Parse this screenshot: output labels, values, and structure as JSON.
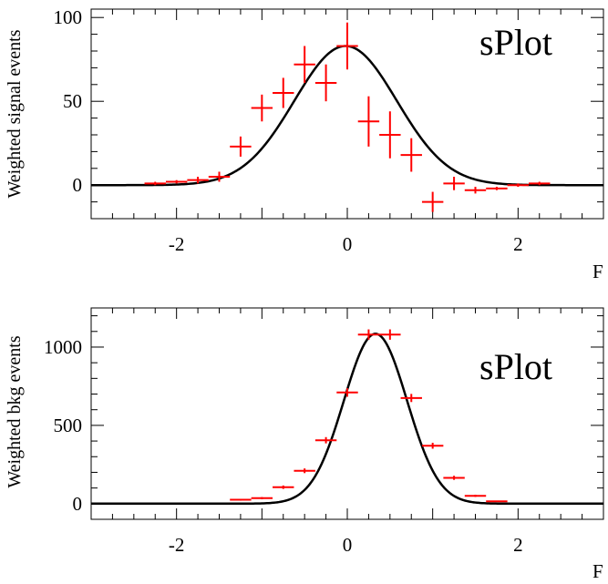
{
  "chart_data": [
    {
      "type": "scatter",
      "title": "sPlot",
      "xlabel": "F",
      "ylabel": "Weighted signal events",
      "xlim": [
        -3,
        3
      ],
      "ylim": [
        -20,
        105
      ],
      "xticks": [
        -2,
        0,
        2
      ],
      "yticks": [
        0,
        50,
        100
      ],
      "tick_labels": {
        "x": [
          "-2",
          "0",
          "2"
        ],
        "y": [
          "0",
          "50",
          "100"
        ]
      },
      "grid": false,
      "legend": "none",
      "series": [
        {
          "kind": "points-with-errors",
          "color": "#ff0000",
          "x": [
            -2.25,
            -2.0,
            -1.75,
            -1.5,
            -1.25,
            -1.0,
            -0.75,
            -0.5,
            -0.25,
            0.0,
            0.25,
            0.5,
            0.75,
            1.0,
            1.25,
            1.5,
            1.75,
            2.0,
            2.25
          ],
          "xerr": 0.125,
          "y": [
            1,
            2,
            3,
            5,
            23,
            46,
            55,
            72,
            61,
            83,
            38,
            30,
            18,
            -10,
            1,
            -3,
            -2,
            0,
            1
          ],
          "yerr": [
            1,
            1,
            2,
            3,
            6,
            8,
            9,
            11,
            11,
            14,
            15,
            14,
            10,
            6,
            4,
            2,
            1,
            1,
            1
          ]
        },
        {
          "kind": "curve",
          "color": "#000000",
          "function": "gaussian",
          "amplitude": 83,
          "mean": -0.02,
          "sigma": 0.6
        }
      ]
    },
    {
      "type": "scatter",
      "title": "sPlot",
      "xlabel": "F",
      "ylabel": "Weighted bkg events",
      "xlim": [
        -3,
        3
      ],
      "ylim": [
        -100,
        1250
      ],
      "xticks": [
        -2,
        0,
        2
      ],
      "yticks": [
        0,
        500,
        1000
      ],
      "tick_labels": {
        "x": [
          "-2",
          "0",
          "2"
        ],
        "y": [
          "0",
          "500",
          "1000"
        ]
      },
      "grid": false,
      "legend": "none",
      "series": [
        {
          "kind": "points-with-errors",
          "color": "#ff0000",
          "x": [
            -1.25,
            -1.0,
            -0.75,
            -0.5,
            -0.25,
            0.0,
            0.25,
            0.5,
            0.75,
            1.0,
            1.25,
            1.5,
            1.75
          ],
          "xerr": 0.125,
          "y": [
            25,
            35,
            105,
            210,
            405,
            710,
            1080,
            1080,
            675,
            370,
            165,
            50,
            15
          ],
          "yerr": [
            6,
            7,
            11,
            15,
            20,
            27,
            33,
            33,
            26,
            19,
            13,
            7,
            4
          ]
        },
        {
          "kind": "curve",
          "color": "#000000",
          "function": "gaussian",
          "amplitude": 1085,
          "mean": 0.33,
          "sigma": 0.37
        }
      ]
    }
  ]
}
